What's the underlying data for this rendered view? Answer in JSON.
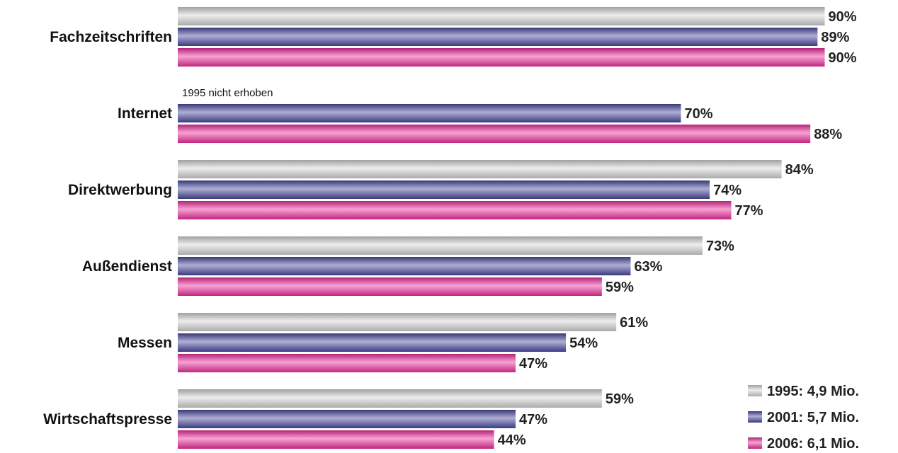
{
  "chart_data": {
    "type": "bar",
    "orientation": "horizontal",
    "categories": [
      "Fachzeitschriften",
      "Internet",
      "Direktwerbung",
      "Außendienst",
      "Messen",
      "Wirtschaftspresse"
    ],
    "series": [
      {
        "name": "1995: 4,9 Mio.",
        "values": [
          90,
          null,
          84,
          73,
          61,
          59
        ],
        "color": "#d6d6d6"
      },
      {
        "name": "2001: 5,7 Mio.",
        "values": [
          89,
          70,
          74,
          63,
          54,
          47
        ],
        "color": "#4a4aa0"
      },
      {
        "name": "2006: 6,1 Mio.",
        "values": [
          90,
          88,
          77,
          59,
          47,
          44
        ],
        "color": "#f0309e"
      }
    ],
    "value_labels": [
      [
        "90%",
        "89%",
        "90%"
      ],
      [
        "",
        "70%",
        "88%"
      ],
      [
        "84%",
        "74%",
        "77%"
      ],
      [
        "73%",
        "63%",
        "59%"
      ],
      [
        "61%",
        "54%",
        "47%"
      ],
      [
        "59%",
        "47%",
        "44%"
      ]
    ],
    "annotations": [
      {
        "category": "Internet",
        "series": "1995: 4,9 Mio.",
        "text": "1995 nicht erhoben"
      }
    ],
    "value_unit": "%",
    "xlim": [
      0,
      100
    ],
    "grid": false,
    "legend_position": "bottom-right",
    "title": "",
    "xlabel": "",
    "ylabel": ""
  }
}
